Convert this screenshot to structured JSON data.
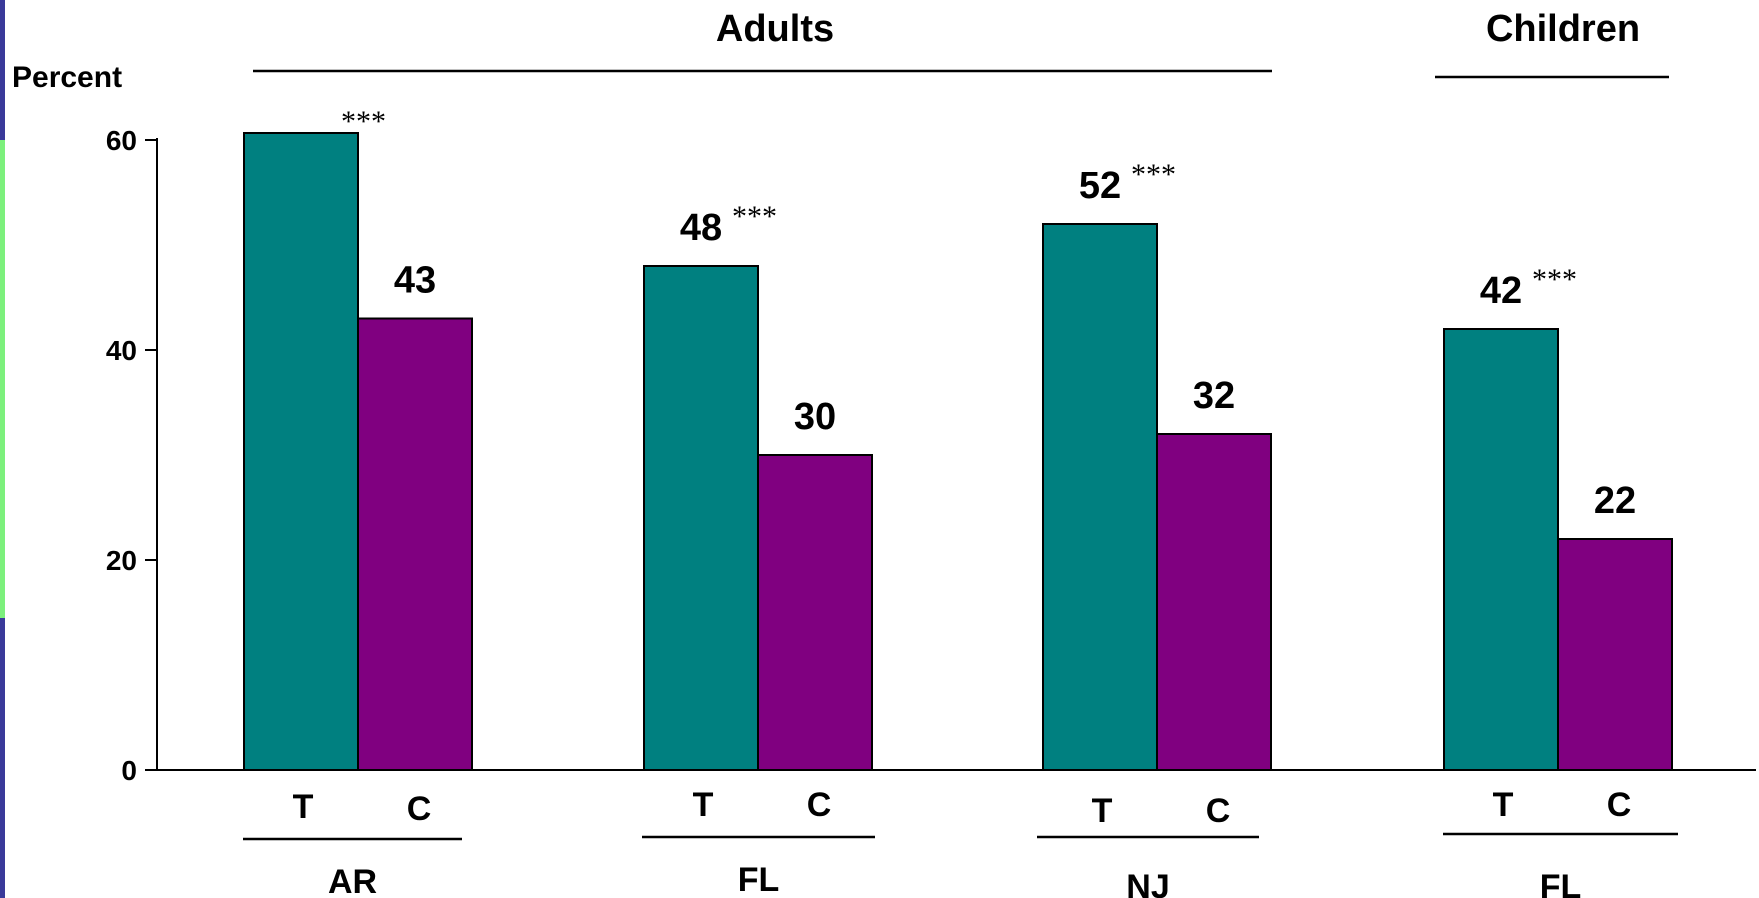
{
  "chart_data": {
    "type": "bar",
    "ylabel": "Percent",
    "ylim": [
      0,
      60
    ],
    "yticks": [
      0,
      20,
      40,
      60
    ],
    "group_titles": [
      "Adults",
      "Children"
    ],
    "series_labels": [
      "T",
      "C"
    ],
    "colors": {
      "T": "#008080",
      "C": "#800080"
    },
    "groups": [
      {
        "site": "AR",
        "population": "Adults",
        "T": {
          "value": 61,
          "label": "",
          "sig": "***"
        },
        "C": {
          "value": 43,
          "label": "43",
          "sig": ""
        }
      },
      {
        "site": "FL",
        "population": "Adults",
        "T": {
          "value": 48,
          "label": "48",
          "sig": "***"
        },
        "C": {
          "value": 30,
          "label": "30",
          "sig": ""
        }
      },
      {
        "site": "NJ",
        "population": "Adults",
        "T": {
          "value": 52,
          "label": "52",
          "sig": "***"
        },
        "C": {
          "value": 32,
          "label": "32",
          "sig": ""
        }
      },
      {
        "site": "FL",
        "population": "Children",
        "T": {
          "value": 42,
          "label": "42",
          "sig": "***"
        },
        "C": {
          "value": 22,
          "label": "22",
          "sig": ""
        }
      }
    ]
  }
}
